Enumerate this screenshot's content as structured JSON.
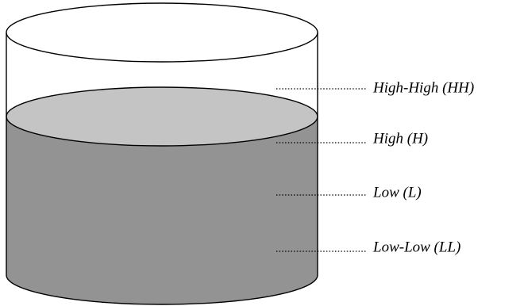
{
  "tank": {
    "liquid_side_color": "#939393",
    "liquid_surface_color": "#c4c4c4",
    "outline_color": "#000000",
    "background_color": "#ffffff"
  },
  "levels": [
    {
      "id": "hh",
      "label": "High-High (HH)"
    },
    {
      "id": "h",
      "label": "High (H)"
    },
    {
      "id": "l",
      "label": "Low (L)"
    },
    {
      "id": "ll",
      "label": "Low-Low (LL)"
    }
  ]
}
